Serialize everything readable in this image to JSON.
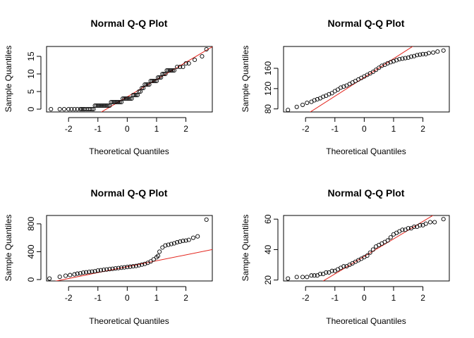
{
  "chart_data": [
    {
      "type": "scatter",
      "title": "Normal Q-Q Plot",
      "xlabel": "Theoretical Quantiles",
      "ylabel": "Sample Quantiles",
      "xlim": [
        -2.75,
        2.9
      ],
      "ylim": [
        -0.8,
        17.8
      ],
      "xticks": [
        -2,
        -1,
        0,
        1,
        2
      ],
      "yticks": [
        0,
        5,
        10,
        15
      ],
      "ref_line": {
        "slope": 4.9,
        "intercept": 3.5
      },
      "points": {
        "x": [
          -2.6,
          -2.3,
          -2.15,
          -2.0,
          -1.9,
          -1.8,
          -1.7,
          -1.6,
          -1.55,
          -1.5,
          -1.45,
          -1.38,
          -1.32,
          -1.26,
          -1.2,
          -1.15,
          -1.1,
          -1.05,
          -1.0,
          -0.95,
          -0.9,
          -0.85,
          -0.8,
          -0.75,
          -0.7,
          -0.65,
          -0.6,
          -0.55,
          -0.5,
          -0.45,
          -0.4,
          -0.35,
          -0.3,
          -0.25,
          -0.2,
          -0.15,
          -0.1,
          -0.05,
          0.0,
          0.05,
          0.1,
          0.15,
          0.2,
          0.25,
          0.3,
          0.35,
          0.4,
          0.45,
          0.5,
          0.55,
          0.6,
          0.65,
          0.7,
          0.75,
          0.8,
          0.85,
          0.9,
          0.95,
          1.0,
          1.05,
          1.1,
          1.15,
          1.2,
          1.25,
          1.3,
          1.35,
          1.4,
          1.45,
          1.5,
          1.55,
          1.6,
          1.7,
          1.8,
          1.9,
          2.0,
          2.1,
          2.3,
          2.55,
          2.7
        ],
        "y": [
          0,
          0,
          0,
          0,
          0,
          0,
          0,
          0,
          0,
          0,
          0,
          0,
          0,
          0,
          0,
          0,
          1,
          1,
          1,
          1,
          1,
          1,
          1,
          1,
          1,
          1,
          1,
          2,
          2,
          2,
          2,
          2,
          2,
          2,
          2,
          3,
          3,
          3,
          3,
          3,
          3,
          3,
          4,
          4,
          4,
          4,
          5,
          5,
          6,
          6,
          7,
          7,
          7,
          7,
          8,
          8,
          8,
          8,
          8,
          9,
          9,
          9,
          10,
          10,
          10,
          11,
          11,
          11,
          11,
          11,
          11,
          12,
          12,
          12,
          13,
          13,
          14,
          15,
          17
        ]
      }
    },
    {
      "type": "scatter",
      "title": "Normal Q-Q Plot",
      "xlabel": "Theoretical Quantiles",
      "ylabel": "Sample Quantiles",
      "xlim": [
        -2.75,
        2.9
      ],
      "ylim": [
        74,
        203
      ],
      "xticks": [
        -2,
        -1,
        0,
        1,
        2
      ],
      "yticks": [
        80,
        120,
        160
      ],
      "ref_line": {
        "slope": 37,
        "intercept": 142
      },
      "points": {
        "x": [
          -2.6,
          -2.3,
          -2.1,
          -1.95,
          -1.8,
          -1.7,
          -1.6,
          -1.5,
          -1.4,
          -1.3,
          -1.2,
          -1.1,
          -1.0,
          -0.9,
          -0.8,
          -0.7,
          -0.6,
          -0.5,
          -0.4,
          -0.3,
          -0.2,
          -0.1,
          0.0,
          0.1,
          0.2,
          0.3,
          0.4,
          0.5,
          0.6,
          0.7,
          0.8,
          0.9,
          1.0,
          1.1,
          1.2,
          1.3,
          1.4,
          1.5,
          1.6,
          1.7,
          1.8,
          1.9,
          2.0,
          2.1,
          2.2,
          2.35,
          2.5,
          2.7
        ],
        "y": [
          78,
          84,
          88,
          92,
          94,
          97,
          99,
          101,
          104,
          106,
          109,
          111,
          115,
          118,
          122,
          124,
          126,
          129,
          132,
          135,
          138,
          141,
          144,
          147,
          150,
          153,
          157,
          161,
          165,
          167,
          170,
          172,
          174,
          176,
          178,
          179,
          180,
          181,
          183,
          184,
          186,
          187,
          188,
          188,
          190,
          191,
          193,
          195
        ]
      }
    },
    {
      "type": "scatter",
      "title": "Normal Q-Q Plot",
      "xlabel": "Theoretical Quantiles",
      "ylabel": "Sample Quantiles",
      "xlim": [
        -2.75,
        2.9
      ],
      "ylim": [
        -20,
        920
      ],
      "xticks": [
        -2,
        -1,
        0,
        1,
        2
      ],
      "yticks": [
        0,
        400,
        800
      ],
      "ref_line": {
        "slope": 85,
        "intercept": 185
      },
      "points": {
        "x": [
          -2.65,
          -2.3,
          -2.1,
          -1.95,
          -1.8,
          -1.7,
          -1.6,
          -1.5,
          -1.4,
          -1.3,
          -1.2,
          -1.1,
          -1.0,
          -0.9,
          -0.8,
          -0.7,
          -0.6,
          -0.5,
          -0.4,
          -0.3,
          -0.2,
          -0.1,
          0.0,
          0.1,
          0.2,
          0.3,
          0.4,
          0.5,
          0.6,
          0.7,
          0.8,
          0.9,
          1.0,
          1.05,
          1.1,
          1.2,
          1.3,
          1.4,
          1.5,
          1.6,
          1.7,
          1.8,
          1.9,
          2.0,
          2.1,
          2.25,
          2.4,
          2.7
        ],
        "y": [
          15,
          40,
          55,
          65,
          75,
          85,
          90,
          100,
          105,
          110,
          115,
          120,
          130,
          135,
          140,
          145,
          150,
          155,
          160,
          165,
          170,
          175,
          180,
          185,
          190,
          195,
          205,
          215,
          225,
          240,
          260,
          290,
          320,
          340,
          400,
          460,
          490,
          500,
          510,
          520,
          535,
          545,
          555,
          560,
          570,
          600,
          620,
          860
        ]
      }
    },
    {
      "type": "scatter",
      "title": "Normal Q-Q Plot",
      "xlabel": "Theoretical Quantiles",
      "ylabel": "Sample Quantiles",
      "xlim": [
        -2.75,
        2.9
      ],
      "ylim": [
        19.4,
        62.4
      ],
      "xticks": [
        -2,
        -1,
        0,
        1,
        2
      ],
      "yticks": [
        20,
        40,
        60
      ],
      "ref_line": {
        "slope": 11.5,
        "intercept": 35.5
      },
      "points": {
        "x": [
          -2.6,
          -2.3,
          -2.1,
          -1.95,
          -1.8,
          -1.7,
          -1.6,
          -1.5,
          -1.4,
          -1.3,
          -1.2,
          -1.1,
          -1.0,
          -0.9,
          -0.8,
          -0.7,
          -0.6,
          -0.5,
          -0.4,
          -0.3,
          -0.2,
          -0.1,
          0.0,
          0.1,
          0.2,
          0.3,
          0.4,
          0.5,
          0.6,
          0.7,
          0.8,
          0.9,
          1.0,
          1.1,
          1.2,
          1.3,
          1.4,
          1.5,
          1.6,
          1.7,
          1.8,
          1.9,
          2.0,
          2.1,
          2.25,
          2.4,
          2.7
        ],
        "y": [
          21,
          22,
          22,
          22,
          23,
          23,
          23,
          24,
          24,
          25,
          25,
          26,
          26,
          27,
          28,
          29,
          29,
          30,
          31,
          32,
          33,
          34,
          35,
          36,
          38,
          40,
          42,
          43,
          44,
          45,
          46,
          48,
          50,
          51,
          52,
          53,
          53,
          54,
          54,
          55,
          55,
          56,
          56,
          57,
          58,
          58,
          60
        ]
      }
    }
  ]
}
